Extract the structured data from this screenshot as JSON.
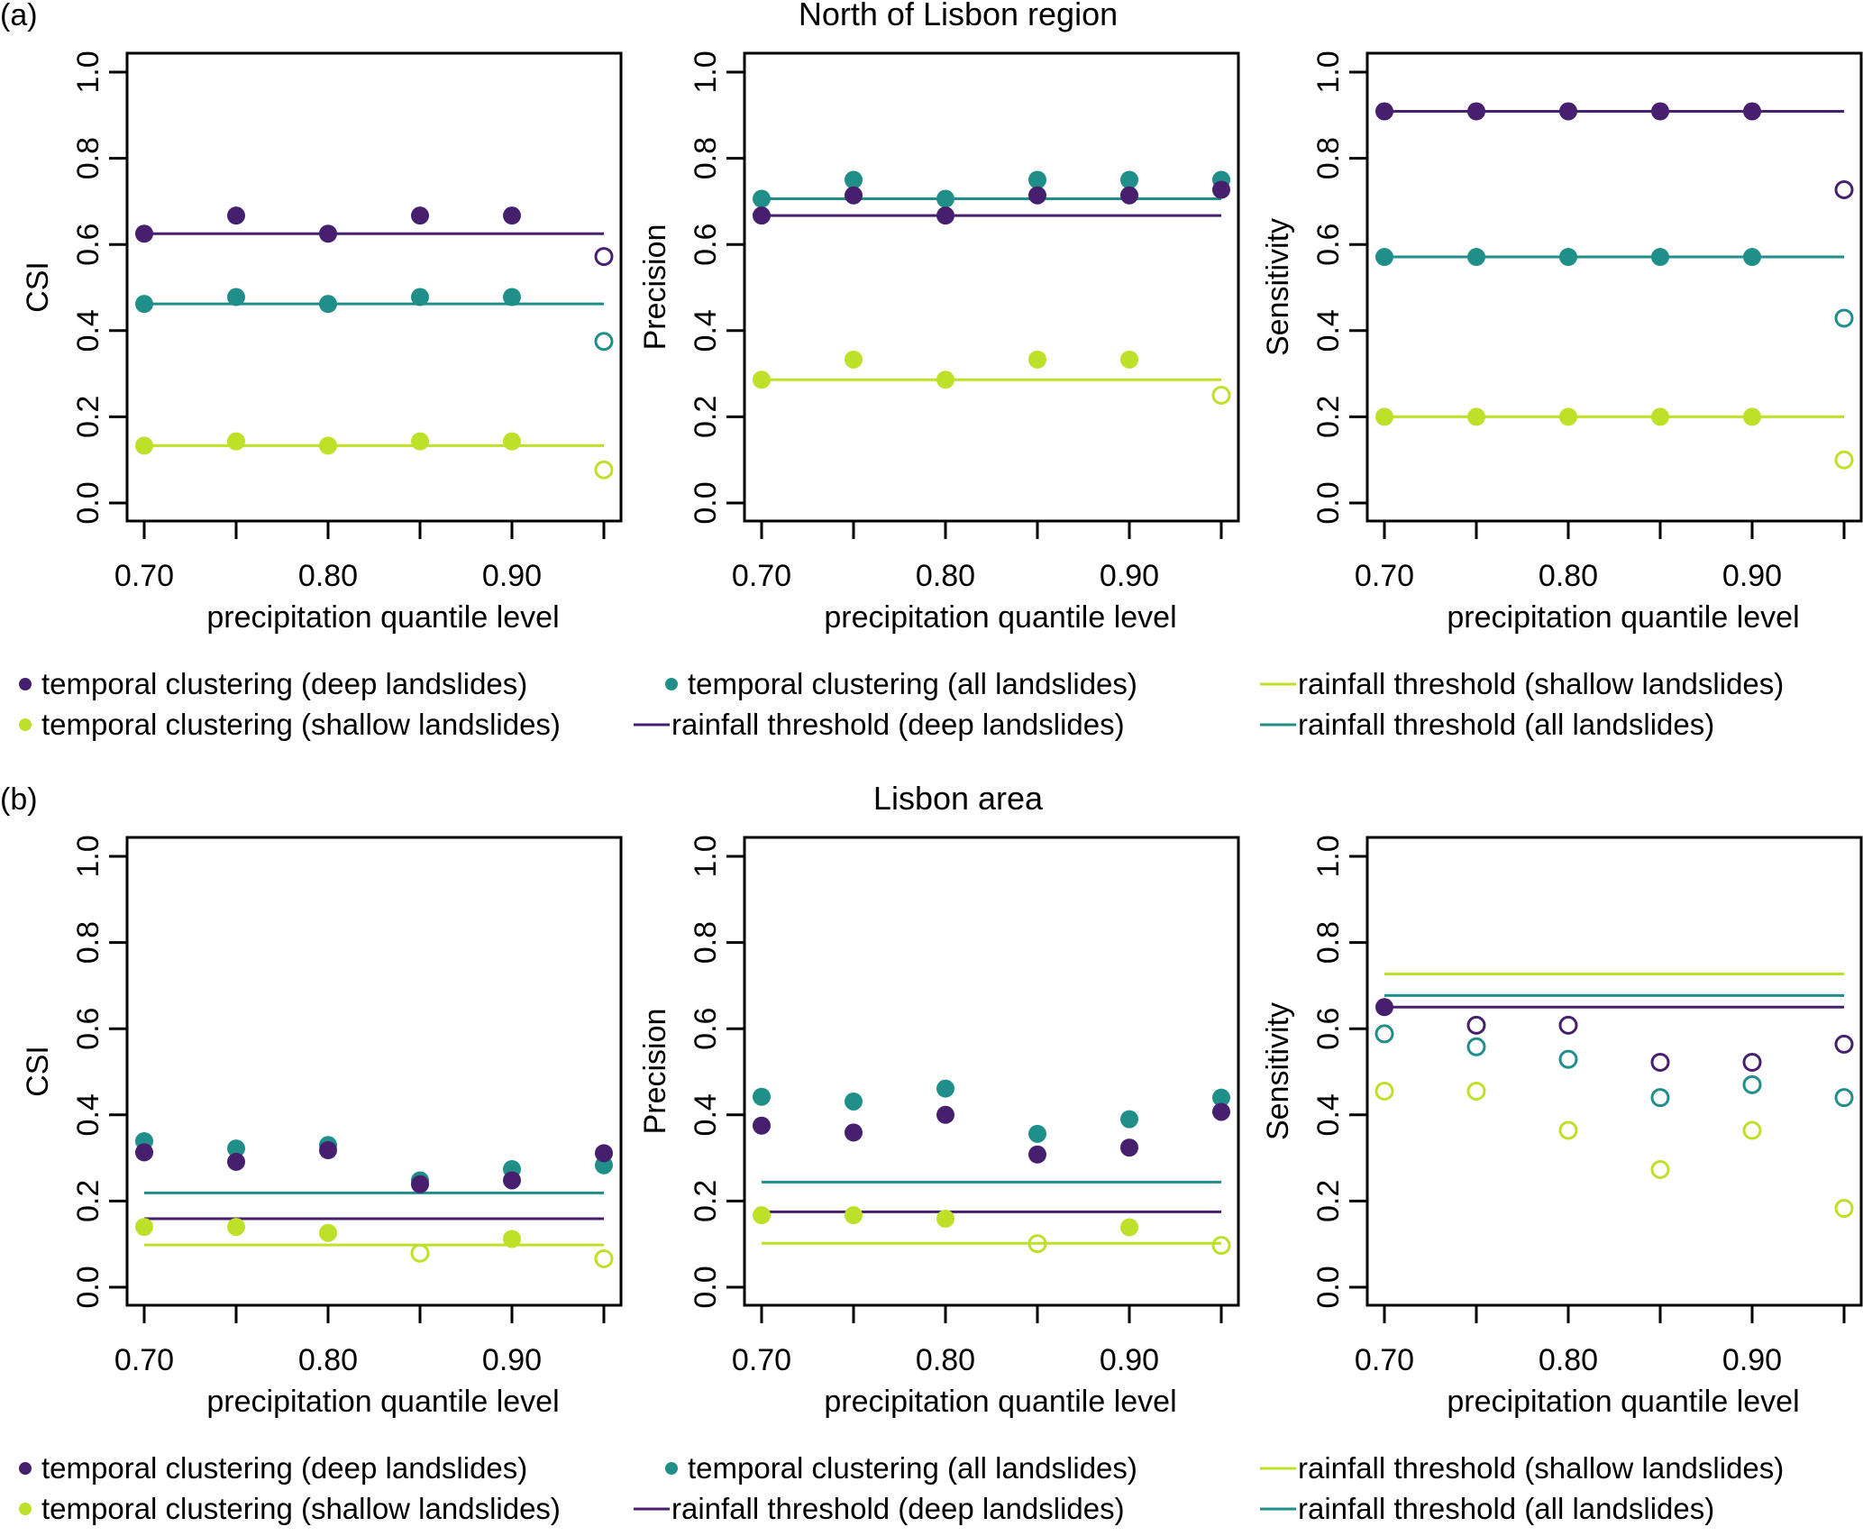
{
  "colors": {
    "deep": "#46206f",
    "all": "#208f8a",
    "shallow": "#bde128",
    "axis": "#000000"
  },
  "legend": {
    "items": [
      {
        "kind": "point",
        "series": "deep",
        "label": "temporal clustering (deep landslides)"
      },
      {
        "kind": "point",
        "series": "all",
        "label": "temporal clustering (all landslides)"
      },
      {
        "kind": "line",
        "series": "shallow",
        "label": "rainfall threshold (shallow landslides)"
      },
      {
        "kind": "point",
        "series": "shallow",
        "label": "temporal clustering (shallow landslides)"
      },
      {
        "kind": "line",
        "series": "deep",
        "label": "rainfall threshold (deep landslides)"
      },
      {
        "kind": "line",
        "series": "all",
        "label": "rainfall threshold (all landslides)"
      }
    ]
  },
  "rows": [
    {
      "panel_label": "(a)",
      "title": "North of Lisbon region"
    },
    {
      "panel_label": "(b)",
      "title": "Lisbon area"
    }
  ],
  "chart_data": [
    {
      "id": "a-csi",
      "row": 0,
      "col": 0,
      "type": "scatter",
      "title": "",
      "xlabel": "precipitation quantile level",
      "ylabel": "CSI",
      "x": [
        0.7,
        0.75,
        0.8,
        0.85,
        0.9,
        0.95
      ],
      "xticks": [
        0.7,
        0.8,
        0.9
      ],
      "xtick_labels": [
        "0.70",
        "0.80",
        "0.90"
      ],
      "yticks": [
        0.0,
        0.2,
        0.4,
        0.6,
        0.8,
        1.0
      ],
      "ytick_labels": [
        "0.0",
        "0.2",
        "0.4",
        "0.6",
        "0.8",
        "1.0"
      ],
      "ylim": [
        0,
        1
      ],
      "series": [
        {
          "name": "temporal clustering (deep landslides)",
          "key": "deep",
          "values": [
            0.625,
            0.667,
            0.625,
            0.667,
            0.667,
            0.572
          ],
          "filled": [
            true,
            true,
            true,
            true,
            true,
            false
          ]
        },
        {
          "name": "temporal clustering (all landslides)",
          "key": "all",
          "values": [
            0.462,
            0.478,
            0.462,
            0.478,
            0.478,
            0.375
          ],
          "filled": [
            true,
            true,
            true,
            true,
            true,
            false
          ]
        },
        {
          "name": "temporal clustering (shallow landslides)",
          "key": "shallow",
          "values": [
            0.133,
            0.143,
            0.133,
            0.143,
            0.143,
            0.077
          ],
          "filled": [
            true,
            true,
            true,
            true,
            true,
            false
          ]
        }
      ],
      "thresholds": [
        {
          "name": "rainfall threshold (deep landslides)",
          "key": "deep",
          "value": 0.625
        },
        {
          "name": "rainfall threshold (all landslides)",
          "key": "all",
          "value": 0.462
        },
        {
          "name": "rainfall threshold (shallow landslides)",
          "key": "shallow",
          "value": 0.133
        }
      ]
    },
    {
      "id": "a-precision",
      "row": 0,
      "col": 1,
      "type": "scatter",
      "title": "",
      "xlabel": "precipitation quantile level",
      "ylabel": "Precision",
      "x": [
        0.7,
        0.75,
        0.8,
        0.85,
        0.9,
        0.95
      ],
      "xticks": [
        0.7,
        0.8,
        0.9
      ],
      "xtick_labels": [
        "0.70",
        "0.80",
        "0.90"
      ],
      "yticks": [
        0.0,
        0.2,
        0.4,
        0.6,
        0.8,
        1.0
      ],
      "ytick_labels": [
        "0.0",
        "0.2",
        "0.4",
        "0.6",
        "0.8",
        "1.0"
      ],
      "ylim": [
        0,
        1
      ],
      "series": [
        {
          "name": "temporal clustering (all landslides)",
          "key": "all",
          "values": [
            0.706,
            0.75,
            0.706,
            0.75,
            0.75,
            0.75
          ],
          "filled": [
            true,
            true,
            true,
            true,
            true,
            true
          ]
        },
        {
          "name": "temporal clustering (deep landslides)",
          "key": "deep",
          "values": [
            0.667,
            0.714,
            0.667,
            0.714,
            0.714,
            0.727
          ],
          "filled": [
            true,
            true,
            true,
            true,
            true,
            true
          ]
        },
        {
          "name": "temporal clustering (shallow landslides)",
          "key": "shallow",
          "values": [
            0.286,
            0.333,
            0.286,
            0.333,
            0.333,
            0.25
          ],
          "filled": [
            true,
            true,
            true,
            true,
            true,
            false
          ]
        }
      ],
      "thresholds": [
        {
          "name": "rainfall threshold (all landslides)",
          "key": "all",
          "value": 0.706
        },
        {
          "name": "rainfall threshold (deep landslides)",
          "key": "deep",
          "value": 0.667
        },
        {
          "name": "rainfall threshold (shallow landslides)",
          "key": "shallow",
          "value": 0.286
        }
      ]
    },
    {
      "id": "a-sensitivity",
      "row": 0,
      "col": 2,
      "type": "scatter",
      "title": "",
      "xlabel": "precipitation quantile level",
      "ylabel": "Sensitivity",
      "x": [
        0.7,
        0.75,
        0.8,
        0.85,
        0.9,
        0.95
      ],
      "xticks": [
        0.7,
        0.8,
        0.9
      ],
      "xtick_labels": [
        "0.70",
        "0.80",
        "0.90"
      ],
      "yticks": [
        0.0,
        0.2,
        0.4,
        0.6,
        0.8,
        1.0
      ],
      "ytick_labels": [
        "0.0",
        "0.2",
        "0.4",
        "0.6",
        "0.8",
        "1.0"
      ],
      "ylim": [
        0,
        1
      ],
      "series": [
        {
          "name": "temporal clustering (deep landslides)",
          "key": "deep",
          "values": [
            0.909,
            0.909,
            0.909,
            0.909,
            0.909,
            0.727
          ],
          "filled": [
            true,
            true,
            true,
            true,
            true,
            false
          ]
        },
        {
          "name": "temporal clustering (all landslides)",
          "key": "all",
          "values": [
            0.571,
            0.571,
            0.571,
            0.571,
            0.571,
            0.429
          ],
          "filled": [
            true,
            true,
            true,
            true,
            true,
            false
          ]
        },
        {
          "name": "temporal clustering (shallow landslides)",
          "key": "shallow",
          "values": [
            0.2,
            0.2,
            0.2,
            0.2,
            0.2,
            0.1
          ],
          "filled": [
            true,
            true,
            true,
            true,
            true,
            false
          ]
        }
      ],
      "thresholds": [
        {
          "name": "rainfall threshold (deep landslides)",
          "key": "deep",
          "value": 0.909
        },
        {
          "name": "rainfall threshold (all landslides)",
          "key": "all",
          "value": 0.571
        },
        {
          "name": "rainfall threshold (shallow landslides)",
          "key": "shallow",
          "value": 0.2
        }
      ]
    },
    {
      "id": "b-csi",
      "row": 1,
      "col": 0,
      "type": "scatter",
      "title": "",
      "xlabel": "precipitation quantile level",
      "ylabel": "CSI",
      "x": [
        0.7,
        0.75,
        0.8,
        0.85,
        0.9,
        0.95
      ],
      "xticks": [
        0.7,
        0.8,
        0.9
      ],
      "xtick_labels": [
        "0.70",
        "0.80",
        "0.90"
      ],
      "yticks": [
        0.0,
        0.2,
        0.4,
        0.6,
        0.8,
        1.0
      ],
      "ytick_labels": [
        "0.0",
        "0.2",
        "0.4",
        "0.6",
        "0.8",
        "1.0"
      ],
      "ylim": [
        0,
        1
      ],
      "series": [
        {
          "name": "temporal clustering (all landslides)",
          "key": "all",
          "values": [
            0.339,
            0.322,
            0.33,
            0.248,
            0.274,
            0.283
          ],
          "filled": [
            true,
            true,
            true,
            true,
            true,
            true
          ]
        },
        {
          "name": "temporal clustering (deep landslides)",
          "key": "deep",
          "values": [
            0.313,
            0.291,
            0.318,
            0.239,
            0.248,
            0.311
          ],
          "filled": [
            true,
            true,
            true,
            true,
            true,
            true
          ]
        },
        {
          "name": "temporal clustering (shallow landslides)",
          "key": "shallow",
          "values": [
            0.14,
            0.14,
            0.126,
            0.079,
            0.112,
            0.066
          ],
          "filled": [
            true,
            true,
            true,
            false,
            true,
            false
          ]
        }
      ],
      "thresholds": [
        {
          "name": "rainfall threshold (all landslides)",
          "key": "all",
          "value": 0.219
        },
        {
          "name": "rainfall threshold (deep landslides)",
          "key": "deep",
          "value": 0.159
        },
        {
          "name": "rainfall threshold (shallow landslides)",
          "key": "shallow",
          "value": 0.098
        }
      ]
    },
    {
      "id": "b-precision",
      "row": 1,
      "col": 1,
      "type": "scatter",
      "title": "",
      "xlabel": "precipitation quantile level",
      "ylabel": "Precision",
      "x": [
        0.7,
        0.75,
        0.8,
        0.85,
        0.9,
        0.95
      ],
      "xticks": [
        0.7,
        0.8,
        0.9
      ],
      "xtick_labels": [
        "0.70",
        "0.80",
        "0.90"
      ],
      "yticks": [
        0.0,
        0.2,
        0.4,
        0.6,
        0.8,
        1.0
      ],
      "ytick_labels": [
        "0.0",
        "0.2",
        "0.4",
        "0.6",
        "0.8",
        "1.0"
      ],
      "ylim": [
        0,
        1
      ],
      "series": [
        {
          "name": "temporal clustering (all landslides)",
          "key": "all",
          "values": [
            0.442,
            0.431,
            0.461,
            0.356,
            0.39,
            0.44
          ],
          "filled": [
            true,
            true,
            true,
            true,
            true,
            true
          ]
        },
        {
          "name": "temporal clustering (deep landslides)",
          "key": "deep",
          "values": [
            0.375,
            0.359,
            0.4,
            0.308,
            0.324,
            0.407
          ],
          "filled": [
            true,
            true,
            true,
            true,
            true,
            true
          ]
        },
        {
          "name": "temporal clustering (shallow landslides)",
          "key": "shallow",
          "values": [
            0.167,
            0.167,
            0.159,
            0.101,
            0.139,
            0.097
          ],
          "filled": [
            true,
            true,
            true,
            false,
            true,
            false
          ]
        }
      ],
      "thresholds": [
        {
          "name": "rainfall threshold (all landslides)",
          "key": "all",
          "value": 0.244
        },
        {
          "name": "rainfall threshold (deep landslides)",
          "key": "deep",
          "value": 0.175
        },
        {
          "name": "rainfall threshold (shallow landslides)",
          "key": "shallow",
          "value": 0.102
        }
      ]
    },
    {
      "id": "b-sensitivity",
      "row": 1,
      "col": 2,
      "type": "scatter",
      "title": "",
      "xlabel": "precipitation quantile level",
      "ylabel": "Sensitivity",
      "x": [
        0.7,
        0.75,
        0.8,
        0.85,
        0.9,
        0.95
      ],
      "xticks": [
        0.7,
        0.8,
        0.9
      ],
      "xtick_labels": [
        "0.70",
        "0.80",
        "0.90"
      ],
      "yticks": [
        0.0,
        0.2,
        0.4,
        0.6,
        0.8,
        1.0
      ],
      "ytick_labels": [
        "0.0",
        "0.2",
        "0.4",
        "0.6",
        "0.8",
        "1.0"
      ],
      "ylim": [
        0,
        1
      ],
      "series": [
        {
          "name": "temporal clustering (deep landslides)",
          "key": "deep",
          "values": [
            0.65,
            0.608,
            0.608,
            0.522,
            0.522,
            0.564
          ],
          "filled": [
            true,
            false,
            false,
            false,
            false,
            false
          ]
        },
        {
          "name": "temporal clustering (all landslides)",
          "key": "all",
          "values": [
            0.588,
            0.558,
            0.529,
            0.44,
            0.47,
            0.44
          ],
          "filled": [
            false,
            false,
            false,
            false,
            false,
            false
          ]
        },
        {
          "name": "temporal clustering (shallow landslides)",
          "key": "shallow",
          "values": [
            0.455,
            0.455,
            0.364,
            0.273,
            0.364,
            0.183
          ],
          "filled": [
            false,
            false,
            false,
            false,
            false,
            false
          ]
        }
      ],
      "thresholds": [
        {
          "name": "rainfall threshold (shallow landslides)",
          "key": "shallow",
          "value": 0.727
        },
        {
          "name": "rainfall threshold (all landslides)",
          "key": "all",
          "value": 0.677
        },
        {
          "name": "rainfall threshold (deep landslides)",
          "key": "deep",
          "value": 0.65
        }
      ]
    }
  ]
}
